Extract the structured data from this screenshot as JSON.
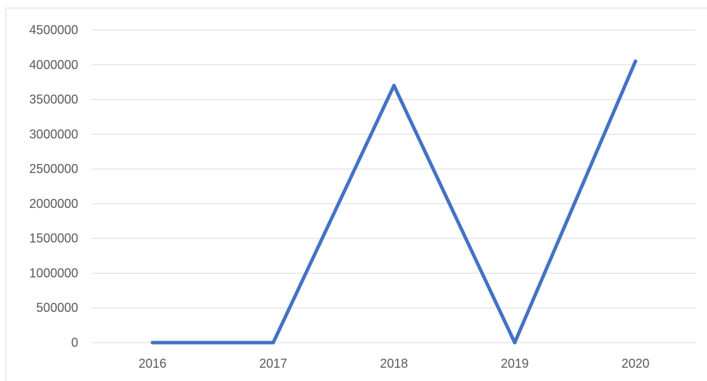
{
  "chart_data": {
    "type": "line",
    "title": "",
    "xlabel": "",
    "ylabel": "",
    "categories": [
      "2016",
      "2017",
      "2018",
      "2019",
      "2020"
    ],
    "series": [
      {
        "values": [
          0,
          0,
          3700000,
          0,
          4050000
        ]
      }
    ],
    "ylim": [
      0,
      4500000
    ],
    "y_ticks": [
      "0",
      "500000",
      "1000000",
      "1500000",
      "2000000",
      "2500000",
      "3000000",
      "3500000",
      "4000000",
      "4500000"
    ],
    "grid": "horizontal",
    "legend": "none",
    "colors": {
      "line": "#4472C4",
      "grid": "#d9d9d9",
      "tick_text": "#595959"
    }
  }
}
